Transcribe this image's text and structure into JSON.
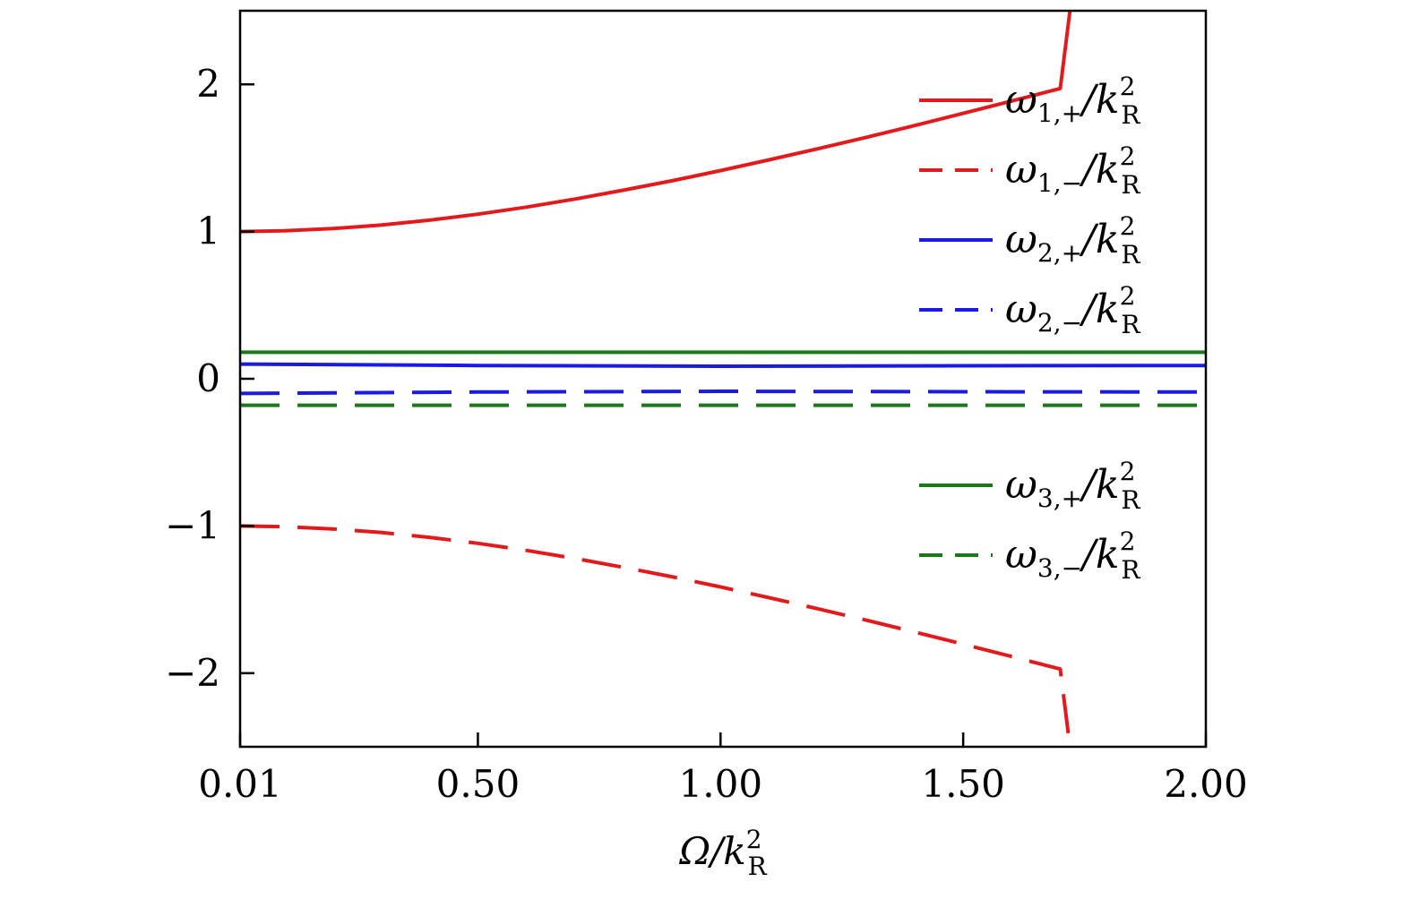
{
  "chart_data": {
    "type": "line",
    "xlabel_main": "Ω/k",
    "xlabel_sub": "R",
    "xlabel_sup": "2",
    "xlim": [
      0.01,
      2.0
    ],
    "ylim": [
      -2.5,
      2.5
    ],
    "x_ticks": [
      0.01,
      0.5,
      1.0,
      1.5,
      2.0
    ],
    "x_tick_labels": [
      "0.01",
      "0.50",
      "1.00",
      "1.50",
      "2.00"
    ],
    "y_ticks": [
      -2,
      -1,
      0,
      1,
      2
    ],
    "y_tick_labels": [
      "−2",
      "−1",
      "0",
      "1",
      "2"
    ],
    "legend_position": "right",
    "series": [
      {
        "name": "ω1,+/kR2",
        "label_main": "ω",
        "label_sub": "1,+",
        "label_tail": "/k",
        "label_tail_sup": "2",
        "label_tail_sub": "R",
        "color": "#e31a1c",
        "style": "solid",
        "x": [
          0.01,
          0.1,
          0.2,
          0.3,
          0.4,
          0.5,
          0.6,
          0.7,
          0.8,
          0.9,
          1.0,
          1.1,
          1.2,
          1.3,
          1.4,
          1.5,
          1.6,
          1.7,
          1.72
        ],
        "y": [
          1.0,
          1.005,
          1.02,
          1.044,
          1.077,
          1.118,
          1.166,
          1.221,
          1.281,
          1.345,
          1.414,
          1.487,
          1.562,
          1.64,
          1.72,
          1.803,
          1.887,
          1.972,
          2.5
        ]
      },
      {
        "name": "ω1,−/kR2",
        "label_main": "ω",
        "label_sub": "1,−",
        "label_tail": "/k",
        "label_tail_sup": "2",
        "label_tail_sub": "R",
        "color": "#e31a1c",
        "style": "dashed",
        "x": [
          0.01,
          0.1,
          0.2,
          0.3,
          0.4,
          0.5,
          0.6,
          0.7,
          0.8,
          0.9,
          1.0,
          1.1,
          1.2,
          1.3,
          1.4,
          1.5,
          1.6,
          1.7,
          1.72
        ],
        "y": [
          -1.0,
          -1.005,
          -1.02,
          -1.044,
          -1.077,
          -1.118,
          -1.166,
          -1.221,
          -1.281,
          -1.345,
          -1.414,
          -1.487,
          -1.562,
          -1.64,
          -1.72,
          -1.803,
          -1.887,
          -1.972,
          -2.5
        ]
      },
      {
        "name": "ω2,+/kR2",
        "label_main": "ω",
        "label_sub": "2,+",
        "label_tail": "/k",
        "label_tail_sup": "2",
        "label_tail_sub": "R",
        "color": "#1a1ae3",
        "style": "solid",
        "x": [
          0.01,
          0.5,
          1.0,
          1.5,
          2.0
        ],
        "y": [
          0.1,
          0.09,
          0.085,
          0.088,
          0.09
        ]
      },
      {
        "name": "ω2,−/kR2",
        "label_main": "ω",
        "label_sub": "2,−",
        "label_tail": "/k",
        "label_tail_sup": "2",
        "label_tail_sub": "R",
        "color": "#1a1ae3",
        "style": "dashed",
        "x": [
          0.01,
          0.5,
          1.0,
          1.5,
          2.0
        ],
        "y": [
          -0.1,
          -0.09,
          -0.085,
          -0.088,
          -0.09
        ]
      },
      {
        "name": "ω3,+/kR2",
        "label_main": "ω",
        "label_sub": "3,+",
        "label_tail": "/k",
        "label_tail_sup": "2",
        "label_tail_sub": "R",
        "color": "#1a7a1a",
        "style": "solid",
        "x": [
          0.01,
          2.0
        ],
        "y": [
          0.18,
          0.18
        ]
      },
      {
        "name": "ω3,−/kR2",
        "label_main": "ω",
        "label_sub": "3,−",
        "label_tail": "/k",
        "label_tail_sup": "2",
        "label_tail_sub": "R",
        "color": "#1a7a1a",
        "style": "dashed",
        "x": [
          0.01,
          2.0
        ],
        "y": [
          -0.18,
          -0.18
        ]
      }
    ]
  }
}
